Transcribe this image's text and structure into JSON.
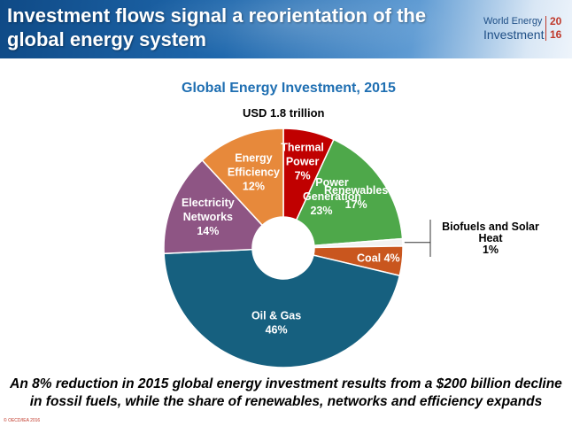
{
  "header": {
    "title_line1": "Investment flows signal a reorientation of the",
    "title_line2": "global energy system"
  },
  "logo": {
    "line1": "World Energy",
    "line2": "Investment",
    "year_top": "20",
    "year_bottom": "16"
  },
  "chart_data": {
    "type": "pie",
    "title": "Global Energy Investment, 2015",
    "subtitle": "USD 1.8 trillion",
    "slices": [
      {
        "name": "Thermal Power",
        "value": 7,
        "label": "7%",
        "color": "#c00000"
      },
      {
        "name": "Renewables",
        "value": 17,
        "label": "17%",
        "color": "#4ea84a"
      },
      {
        "name": "Biofuels and Solar Heat",
        "value": 1,
        "label": "1%",
        "color": "#f2f2f2"
      },
      {
        "name": "Coal",
        "value": 4,
        "label": "4%",
        "color": "#c9561e"
      },
      {
        "name": "Oil & Gas",
        "value": 46,
        "label": "46%",
        "color": "#16607f"
      },
      {
        "name": "Electricity Networks",
        "value": 14,
        "label": "14%",
        "color": "#8e5584"
      },
      {
        "name": "Energy Efficiency",
        "value": 12,
        "label": "12%",
        "color": "#e7893b"
      }
    ],
    "group_annotation": {
      "line1": "Power",
      "line2": "Generation",
      "pct": "23%"
    },
    "callout": {
      "line1": "Biofuels and Solar",
      "line2": "Heat",
      "pct": "1%"
    }
  },
  "footer": {
    "line1": "An 8% reduction in 2015 global energy investment results from a $200 billion decline",
    "line2": "in fossil fuels, while the share of renewables, networks and efficiency expands"
  },
  "copyright": "© OECD/IEA 2016"
}
